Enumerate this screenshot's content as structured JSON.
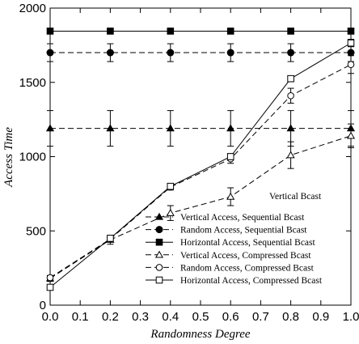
{
  "chart_data": {
    "type": "line",
    "xlabel": "Randomness Degree",
    "ylabel": "Access Time",
    "xlim": [
      0.0,
      1.0
    ],
    "ylim": [
      0,
      2000
    ],
    "x_ticks": [
      "0.0",
      "0.1",
      "0.2",
      "0.3",
      "0.4",
      "0.5",
      "0.6",
      "0.7",
      "0.8",
      "0.9",
      "1.0"
    ],
    "y_ticks": [
      "0",
      "500",
      "1000",
      "1500",
      "2000"
    ],
    "grid": false,
    "legend_position": "bottom-right",
    "annotations": [
      "Vertical Bcast"
    ],
    "x": [
      0.0,
      0.2,
      0.4,
      0.6,
      0.8,
      1.0
    ],
    "series": [
      {
        "name": "Vertical Access, Sequential Bcast",
        "marker": "filled-triangle",
        "line": "dashed",
        "values": [
          1190,
          1190,
          1190,
          1190,
          1190,
          1190
        ],
        "error": [
          120,
          120,
          120,
          120,
          120,
          120
        ]
      },
      {
        "name": "Random Access, Sequential Bcast",
        "marker": "filled-circle",
        "line": "dashed",
        "values": [
          1700,
          1700,
          1700,
          1700,
          1700,
          1700
        ],
        "error": [
          60,
          60,
          60,
          60,
          60,
          60
        ]
      },
      {
        "name": "Horizontal Access, Sequential Bcast",
        "marker": "filled-square",
        "line": "solid",
        "values": [
          1845,
          1845,
          1845,
          1845,
          1845,
          1845
        ]
      },
      {
        "name": "Vertical Access, Compressed Bcast",
        "marker": "open-triangle",
        "line": "dashed",
        "values": [
          180,
          440,
          620,
          730,
          1010,
          1140
        ],
        "error": [
          20,
          30,
          50,
          60,
          90,
          80
        ]
      },
      {
        "name": "Random Access, Compressed Bcast",
        "marker": "open-circle",
        "line": "dashed",
        "values": [
          185,
          445,
          795,
          985,
          1410,
          1620
        ],
        "error": [
          10,
          15,
          20,
          30,
          50,
          60
        ]
      },
      {
        "name": "Horizontal Access, Compressed Bcast",
        "marker": "open-square",
        "line": "solid",
        "values": [
          120,
          450,
          800,
          1000,
          1525,
          1765
        ],
        "error": [
          10,
          15,
          20,
          20,
          20,
          25
        ]
      }
    ]
  }
}
